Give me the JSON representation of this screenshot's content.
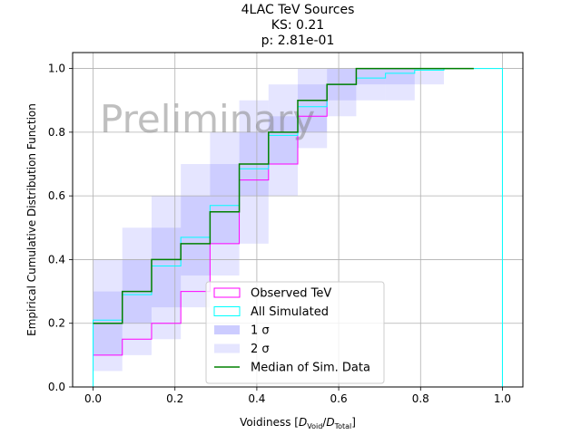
{
  "chart_data": {
    "type": "line",
    "title_lines": [
      "4LAC TeV Sources",
      "KS: 0.21",
      "p: 2.81e-01"
    ],
    "xlabel_parts": {
      "prefix": "Voidiness [",
      "num": "D",
      "num_sub": "Void",
      "slash": "/",
      "den": "D",
      "den_sub": "Total",
      "suffix": "]"
    },
    "ylabel": "Empirical Cumulative Distribution Function",
    "watermark": "Preliminary",
    "xlim": [
      -0.05,
      1.05
    ],
    "ylim": [
      0.0,
      1.05
    ],
    "xticks": [
      0.0,
      0.2,
      0.4,
      0.6,
      0.8,
      1.0
    ],
    "xtick_labels": [
      "0.0",
      "0.2",
      "0.4",
      "0.6",
      "0.8",
      "1.0"
    ],
    "yticks": [
      0.0,
      0.2,
      0.4,
      0.6,
      0.8,
      1.0
    ],
    "ytick_labels": [
      "0.0",
      "0.2",
      "0.4",
      "0.6",
      "0.8",
      "1.0"
    ],
    "grid": true,
    "legend_placement": "lower-center",
    "legend": [
      {
        "label": "Observed TeV",
        "kind": "box",
        "color": "#ff00ff"
      },
      {
        "label": "All Simulated",
        "kind": "box",
        "color": "#00ffff"
      },
      {
        "label": "1 σ",
        "kind": "fill",
        "alpha": 0.2,
        "color": "#0000ff"
      },
      {
        "label": "2 σ",
        "kind": "fill",
        "alpha": 0.1,
        "color": "#0000ff"
      },
      {
        "label": "Median of Sim. Data",
        "kind": "line",
        "color": "#008000"
      }
    ],
    "bands": {
      "color": "#0000ff",
      "bins": [
        {
          "x0": 0.0,
          "x1": 0.0714,
          "one_sigma": [
            0.1,
            0.3
          ],
          "two_sigma": [
            0.05,
            0.4
          ]
        },
        {
          "x0": 0.0714,
          "x1": 0.1429,
          "one_sigma": [
            0.2,
            0.4
          ],
          "two_sigma": [
            0.1,
            0.5
          ]
        },
        {
          "x0": 0.1429,
          "x1": 0.2143,
          "one_sigma": [
            0.25,
            0.5
          ],
          "two_sigma": [
            0.15,
            0.6
          ]
        },
        {
          "x0": 0.2143,
          "x1": 0.2857,
          "one_sigma": [
            0.35,
            0.6
          ],
          "two_sigma": [
            0.25,
            0.7
          ]
        },
        {
          "x0": 0.2857,
          "x1": 0.3571,
          "one_sigma": [
            0.45,
            0.7
          ],
          "two_sigma": [
            0.35,
            0.8
          ]
        },
        {
          "x0": 0.3571,
          "x1": 0.4286,
          "one_sigma": [
            0.6,
            0.8
          ],
          "two_sigma": [
            0.45,
            0.9
          ]
        },
        {
          "x0": 0.4286,
          "x1": 0.5,
          "one_sigma": [
            0.7,
            0.85
          ],
          "two_sigma": [
            0.6,
            0.95
          ]
        },
        {
          "x0": 0.5,
          "x1": 0.5714,
          "one_sigma": [
            0.8,
            0.95
          ],
          "two_sigma": [
            0.75,
            1.0
          ]
        },
        {
          "x0": 0.5714,
          "x1": 0.6429,
          "one_sigma": [
            0.9,
            1.0
          ],
          "two_sigma": [
            0.85,
            1.0
          ]
        },
        {
          "x0": 0.6429,
          "x1": 0.7143,
          "one_sigma": [
            0.95,
            1.0
          ],
          "two_sigma": [
            0.9,
            1.0
          ]
        },
        {
          "x0": 0.7143,
          "x1": 0.7857,
          "one_sigma": [
            0.95,
            1.0
          ],
          "two_sigma": [
            0.9,
            1.0
          ]
        },
        {
          "x0": 0.7857,
          "x1": 0.8571,
          "one_sigma": [
            1.0,
            1.0
          ],
          "two_sigma": [
            0.95,
            1.0
          ]
        }
      ]
    },
    "series": [
      {
        "name": "Observed TeV",
        "color": "#ff00ff",
        "width": 1,
        "points": [
          [
            0,
            0.1
          ],
          [
            0.0714,
            0.1
          ],
          [
            0.0714,
            0.15
          ],
          [
            0.1429,
            0.15
          ],
          [
            0.1429,
            0.2
          ],
          [
            0.2143,
            0.2
          ],
          [
            0.2143,
            0.3
          ],
          [
            0.2857,
            0.3
          ],
          [
            0.2857,
            0.45
          ],
          [
            0.3571,
            0.45
          ],
          [
            0.3571,
            0.65
          ],
          [
            0.4286,
            0.65
          ],
          [
            0.4286,
            0.7
          ],
          [
            0.5,
            0.7
          ],
          [
            0.5,
            0.85
          ],
          [
            0.5714,
            0.85
          ],
          [
            0.5714,
            0.95
          ],
          [
            0.6429,
            0.95
          ],
          [
            0.6429,
            1.0
          ],
          [
            0.93,
            1.0
          ]
        ]
      },
      {
        "name": "All Simulated",
        "color": "#00ffff",
        "width": 1,
        "points": [
          [
            0.0,
            0.0
          ],
          [
            0.0,
            0.21
          ],
          [
            0.0714,
            0.21
          ],
          [
            0.0714,
            0.29
          ],
          [
            0.1429,
            0.29
          ],
          [
            0.1429,
            0.38
          ],
          [
            0.2143,
            0.38
          ],
          [
            0.2143,
            0.47
          ],
          [
            0.2857,
            0.47
          ],
          [
            0.2857,
            0.57
          ],
          [
            0.3571,
            0.57
          ],
          [
            0.3571,
            0.685
          ],
          [
            0.4286,
            0.685
          ],
          [
            0.4286,
            0.79
          ],
          [
            0.5,
            0.79
          ],
          [
            0.5,
            0.88
          ],
          [
            0.5714,
            0.88
          ],
          [
            0.5714,
            0.95
          ],
          [
            0.6429,
            0.95
          ],
          [
            0.6429,
            0.97
          ],
          [
            0.7143,
            0.97
          ],
          [
            0.7143,
            0.985
          ],
          [
            0.7857,
            0.985
          ],
          [
            0.7857,
            0.995
          ],
          [
            0.8571,
            0.995
          ],
          [
            0.8571,
            1.0
          ],
          [
            1.0,
            1.0
          ],
          [
            1.0,
            0.0
          ]
        ]
      },
      {
        "name": "Median of Sim. Data",
        "color": "#008000",
        "width": 1.5,
        "points": [
          [
            0,
            0.2
          ],
          [
            0.0714,
            0.2
          ],
          [
            0.0714,
            0.3
          ],
          [
            0.1429,
            0.3
          ],
          [
            0.1429,
            0.4
          ],
          [
            0.2143,
            0.4
          ],
          [
            0.2143,
            0.45
          ],
          [
            0.2857,
            0.45
          ],
          [
            0.2857,
            0.55
          ],
          [
            0.3571,
            0.55
          ],
          [
            0.3571,
            0.7
          ],
          [
            0.4286,
            0.7
          ],
          [
            0.4286,
            0.8
          ],
          [
            0.5,
            0.8
          ],
          [
            0.5,
            0.9
          ],
          [
            0.5714,
            0.9
          ],
          [
            0.5714,
            0.95
          ],
          [
            0.6429,
            0.95
          ],
          [
            0.6429,
            1.0
          ],
          [
            0.93,
            1.0
          ]
        ]
      }
    ]
  }
}
